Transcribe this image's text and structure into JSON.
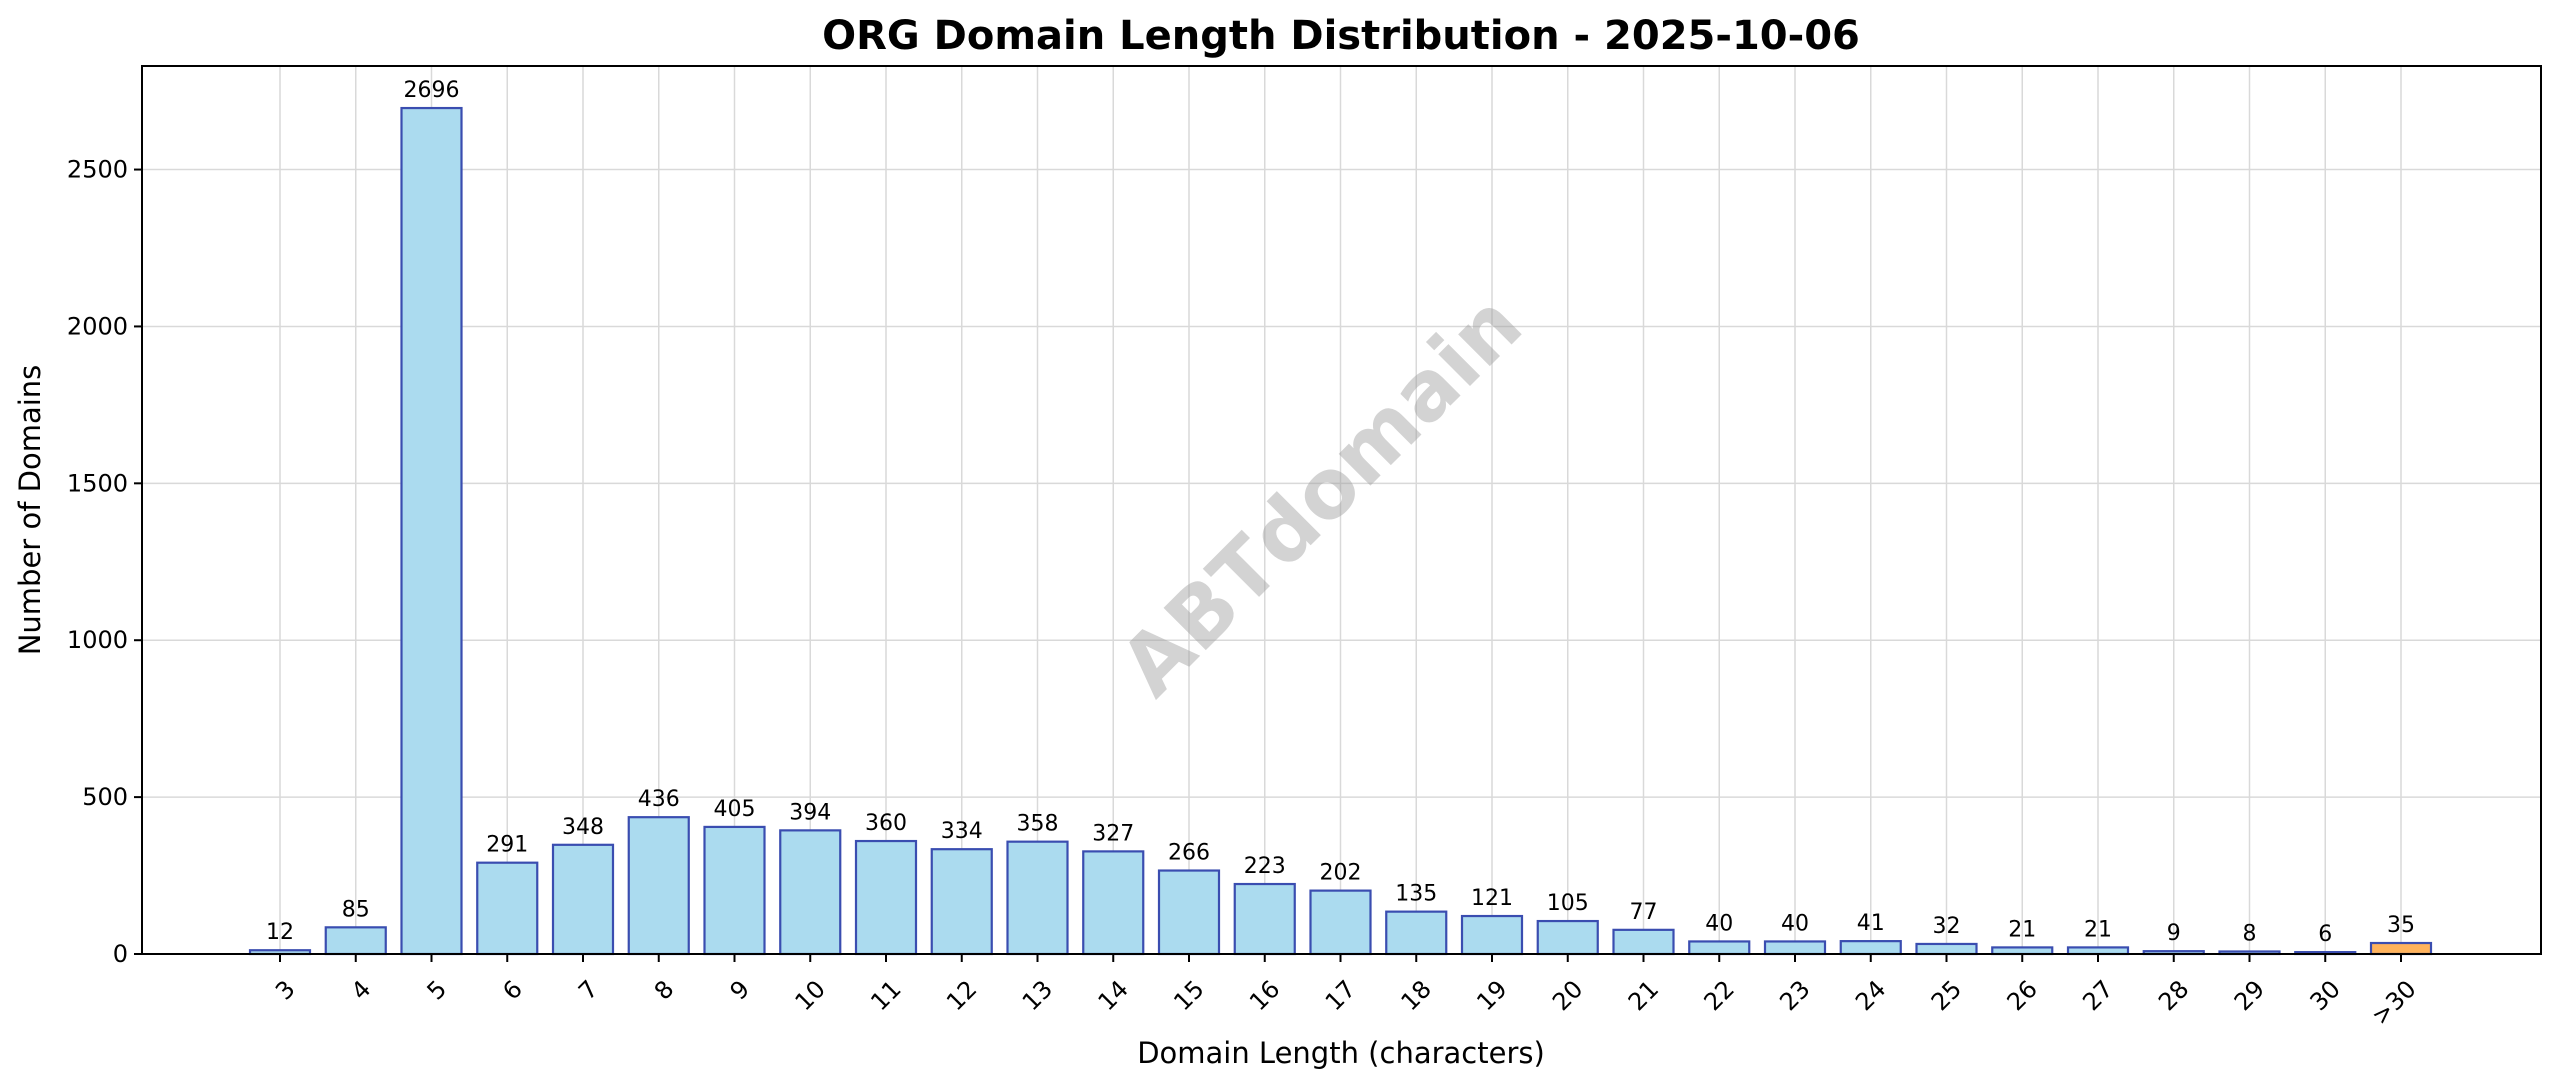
{
  "chart_data": {
    "type": "bar",
    "title": "ORG Domain Length Distribution - 2025-10-06",
    "xlabel": "Domain Length (characters)",
    "ylabel": "Number of Domains",
    "ylim": [
      0,
      2830
    ],
    "yticks": [
      0,
      500,
      1000,
      1500,
      2000,
      2500
    ],
    "grid": true,
    "watermark": "ABTdomain",
    "categories": [
      "3",
      "4",
      "5",
      "6",
      "7",
      "8",
      "9",
      "10",
      "11",
      "12",
      "13",
      "14",
      "15",
      "16",
      "17",
      "18",
      "19",
      "20",
      "21",
      "22",
      "23",
      "24",
      "25",
      "26",
      "27",
      "28",
      "29",
      "30",
      ">30"
    ],
    "values": [
      12,
      85,
      2696,
      291,
      348,
      436,
      405,
      394,
      360,
      334,
      358,
      327,
      266,
      223,
      202,
      135,
      121,
      105,
      77,
      40,
      40,
      41,
      32,
      21,
      21,
      9,
      8,
      6,
      35
    ],
    "colors": {
      "bar_fill": "#abdbef",
      "bar_edge": "#3a4db0",
      "highlight_fill": "#ffb35c",
      "highlight_edge": "#3a4db0",
      "highlight_category": ">30"
    }
  }
}
